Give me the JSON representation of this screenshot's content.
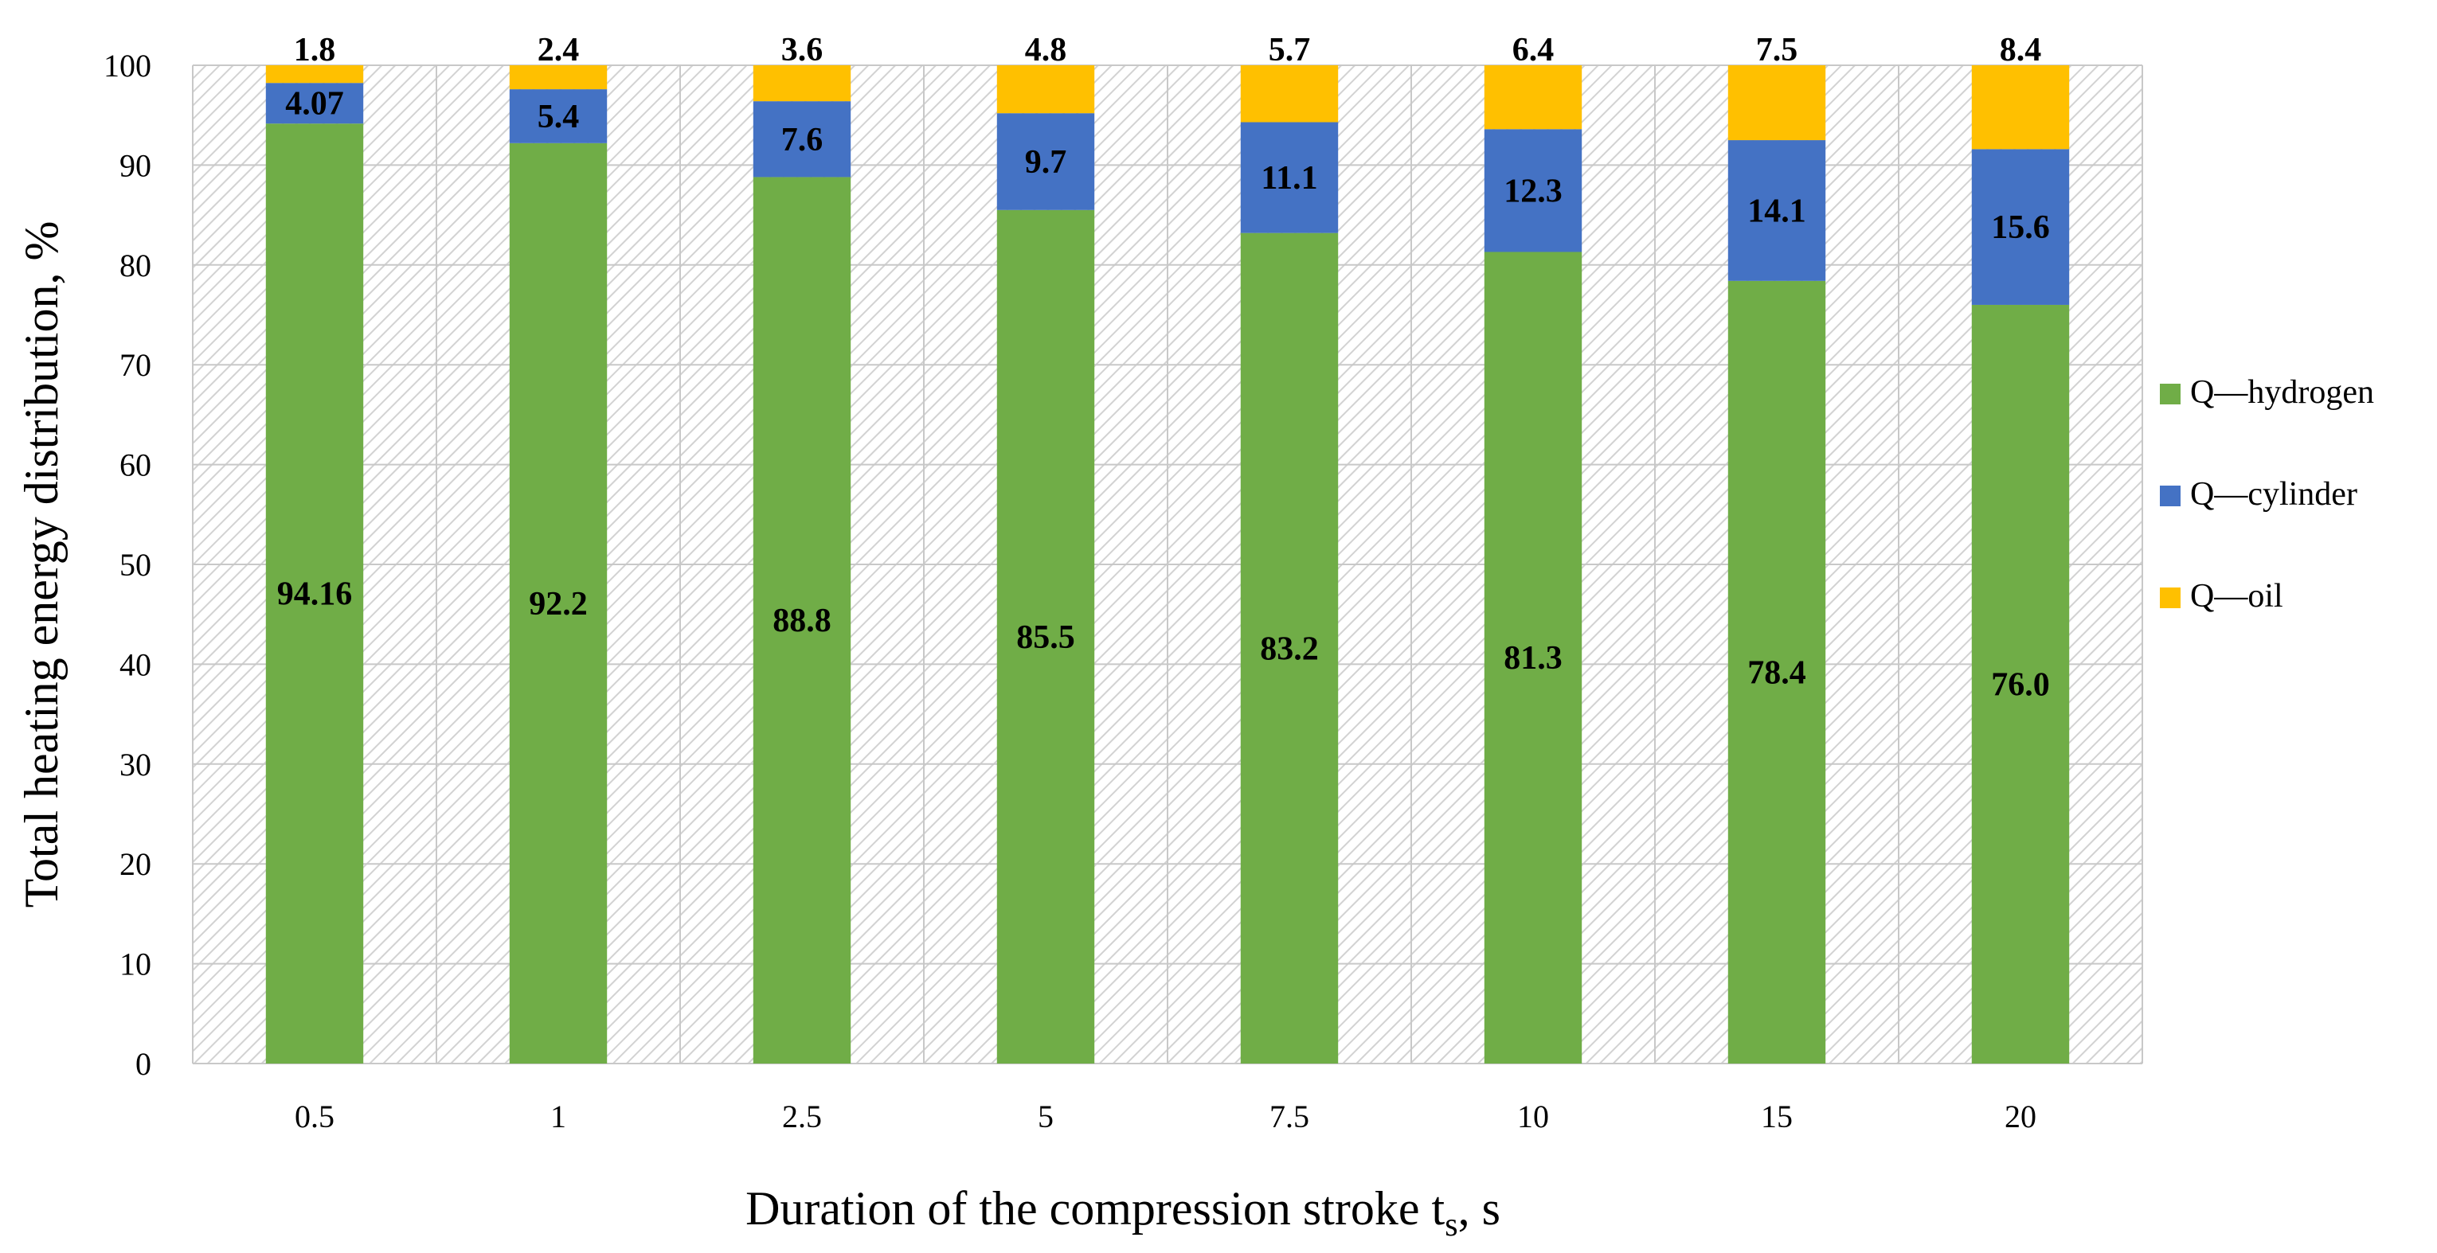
{
  "chart_data": {
    "type": "bar",
    "stacked": true,
    "categories": [
      "0.5",
      "1",
      "2.5",
      "5",
      "7.5",
      "10",
      "15",
      "20"
    ],
    "series": [
      {
        "name": "Q—hydrogen",
        "color": "#70AD47",
        "values": [
          94.16,
          92.2,
          88.8,
          85.5,
          83.2,
          81.3,
          78.4,
          76.0
        ],
        "labels": [
          "94.16",
          "92.2",
          "88.8",
          "85.5",
          "83.2",
          "81.3",
          "78.4",
          "76.0"
        ]
      },
      {
        "name": "Q—cylinder",
        "color": "#4472C4",
        "values": [
          4.07,
          5.4,
          7.6,
          9.7,
          11.1,
          12.3,
          14.1,
          15.6
        ],
        "labels": [
          "4.07",
          "5.4",
          "7.6",
          "9.7",
          "11.1",
          "12.3",
          "14.1",
          "15.6"
        ]
      },
      {
        "name": "Q—oil",
        "color": "#FFC000",
        "values": [
          1.8,
          2.4,
          3.6,
          4.8,
          5.7,
          6.4,
          7.5,
          8.4
        ],
        "labels": [
          "1.8",
          "2.4",
          "3.6",
          "4.8",
          "5.7",
          "6.4",
          "7.5",
          "8.4"
        ]
      }
    ],
    "xlabel": "Duration of the compression stroke t",
    "xlabel_sub": "s",
    "xlabel_suffix": ", s",
    "ylabel": "Total heating energy distribution, %",
    "ylim": [
      0,
      100
    ],
    "yticks": [
      "0",
      "10",
      "20",
      "30",
      "40",
      "50",
      "60",
      "70",
      "80",
      "90",
      "100"
    ],
    "grid": true,
    "plot_background": "hatched",
    "legend_position": "right"
  }
}
